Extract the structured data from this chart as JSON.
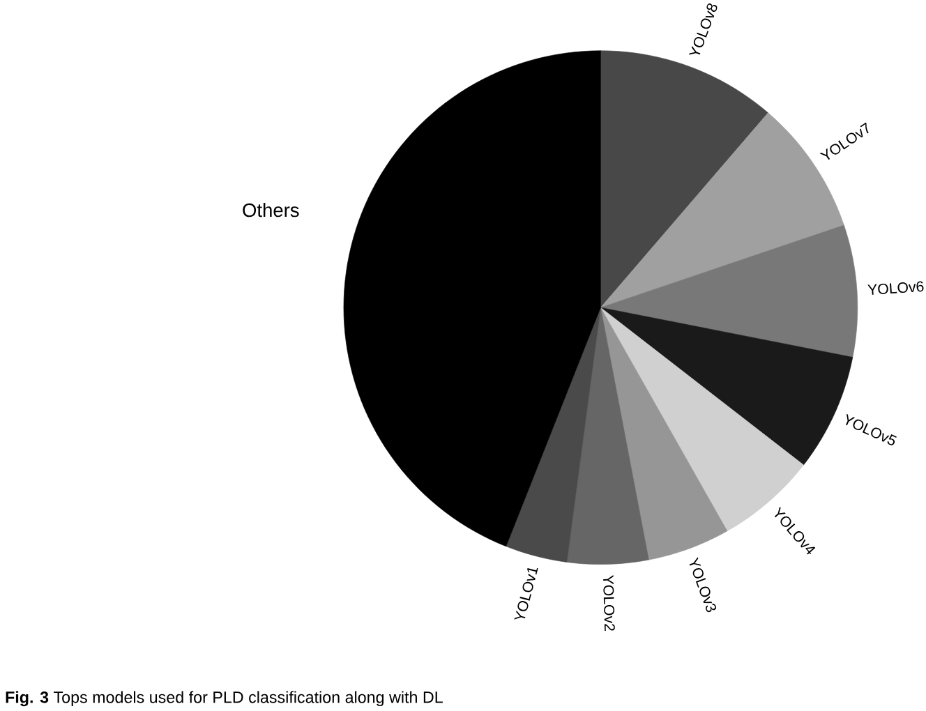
{
  "chart_data": {
    "type": "pie",
    "categories": [
      "YOLOv8",
      "YOLOv7",
      "YOLOv6",
      "YOLOv5",
      "YOLOv4",
      "YOLOv3",
      "YOLOv2",
      "YOLOv1",
      "Others"
    ],
    "values": [
      11.3,
      8.5,
      8.3,
      7.4,
      6.3,
      5.2,
      5.1,
      3.9,
      44.0
    ],
    "colors": [
      "#484848",
      "#a0a0a0",
      "#787878",
      "#1a1a1a",
      "#d0d0d0",
      "#969696",
      "#666666",
      "#4a4a4a",
      "#000000"
    ],
    "annotations": [
      "**Fig. 3** Tops models used for PLD classification along with DL"
    ]
  }
}
